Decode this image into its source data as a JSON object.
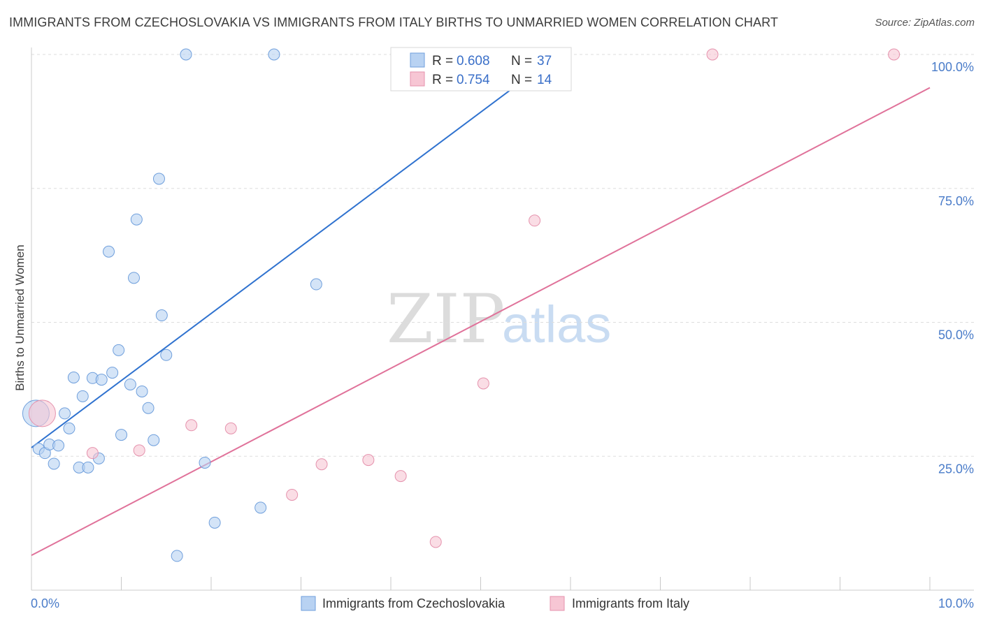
{
  "header": {
    "title": "IMMIGRANTS FROM CZECHOSLOVAKIA VS IMMIGRANTS FROM ITALY BIRTHS TO UNMARRIED WOMEN CORRELATION CHART",
    "source": "Source: ZipAtlas.com"
  },
  "watermark": {
    "zip": "ZIP",
    "atlas": "atlas"
  },
  "colors": {
    "blue_fill": "#b8d2f2",
    "blue_stroke": "#6f9fdc",
    "blue_line": "#2f72cf",
    "pink_fill": "#f7c6d4",
    "pink_stroke": "#e592ad",
    "pink_line": "#e0729a",
    "tick_label": "#4a7cc9",
    "grid": "#dddddd"
  },
  "legend": {
    "items": [
      {
        "r_label": "R = ",
        "r_value": "0.608",
        "n_label": "N = ",
        "n_value": "37",
        "color": "blue"
      },
      {
        "r_label": "R = ",
        "r_value": "0.754",
        "n_label": "N = ",
        "n_value": "14",
        "color": "pink"
      }
    ]
  },
  "chart_data": {
    "type": "scatter",
    "title": "IMMIGRANTS FROM CZECHOSLOVAKIA VS IMMIGRANTS FROM ITALY BIRTHS TO UNMARRIED WOMEN CORRELATION CHART",
    "xlabel": "",
    "ylabel": "Births to Unmarried Women",
    "xlim": [
      0,
      10
    ],
    "ylim": [
      0,
      100
    ],
    "x_unit": "%",
    "y_unit": "%",
    "x_tick_labels": [
      "0.0%",
      "10.0%"
    ],
    "y_tick_values": [
      25,
      50,
      75,
      100
    ],
    "y_tick_labels": [
      "25.0%",
      "50.0%",
      "75.0%",
      "100.0%"
    ],
    "grid": true,
    "legend_position": "top-center",
    "series": [
      {
        "name": "Immigrants from Czechoslovakia",
        "color": "blue",
        "trend": {
          "x": [
            0.0,
            5.9
          ],
          "y": [
            26.6,
            100.5
          ]
        },
        "points": [
          {
            "x": 0.05,
            "y": 33.0,
            "big": true
          },
          {
            "x": 0.08,
            "y": 26.4
          },
          {
            "x": 0.15,
            "y": 25.6
          },
          {
            "x": 0.2,
            "y": 27.2
          },
          {
            "x": 0.25,
            "y": 23.6
          },
          {
            "x": 0.3,
            "y": 27.0
          },
          {
            "x": 0.37,
            "y": 33.0
          },
          {
            "x": 0.42,
            "y": 30.2
          },
          {
            "x": 0.47,
            "y": 39.7
          },
          {
            "x": 0.53,
            "y": 22.9
          },
          {
            "x": 0.57,
            "y": 36.2
          },
          {
            "x": 0.63,
            "y": 22.9
          },
          {
            "x": 0.68,
            "y": 39.6
          },
          {
            "x": 0.75,
            "y": 24.6
          },
          {
            "x": 0.78,
            "y": 39.3
          },
          {
            "x": 0.86,
            "y": 63.2
          },
          {
            "x": 0.9,
            "y": 40.6
          },
          {
            "x": 0.97,
            "y": 44.8
          },
          {
            "x": 1.0,
            "y": 29.0
          },
          {
            "x": 1.1,
            "y": 38.4
          },
          {
            "x": 1.14,
            "y": 58.3
          },
          {
            "x": 1.17,
            "y": 69.2
          },
          {
            "x": 1.23,
            "y": 37.1
          },
          {
            "x": 1.3,
            "y": 34.0
          },
          {
            "x": 1.36,
            "y": 28.0
          },
          {
            "x": 1.42,
            "y": 76.8
          },
          {
            "x": 1.45,
            "y": 51.3
          },
          {
            "x": 1.5,
            "y": 43.9
          },
          {
            "x": 1.62,
            "y": 6.4
          },
          {
            "x": 1.72,
            "y": 100.0
          },
          {
            "x": 1.93,
            "y": 23.8
          },
          {
            "x": 2.04,
            "y": 12.6
          },
          {
            "x": 2.55,
            "y": 15.4
          },
          {
            "x": 2.7,
            "y": 100.0
          },
          {
            "x": 3.17,
            "y": 57.1
          },
          {
            "x": 4.6,
            "y": 100.0
          },
          {
            "x": 5.9,
            "y": 100.0
          }
        ]
      },
      {
        "name": "Immigrants from Italy",
        "color": "pink",
        "trend": {
          "x": [
            0.0,
            10.0
          ],
          "y": [
            6.5,
            93.8
          ]
        },
        "points": [
          {
            "x": 0.12,
            "y": 33.0,
            "big": true
          },
          {
            "x": 0.68,
            "y": 25.6
          },
          {
            "x": 1.2,
            "y": 26.1
          },
          {
            "x": 1.78,
            "y": 30.8
          },
          {
            "x": 2.22,
            "y": 30.2
          },
          {
            "x": 2.9,
            "y": 17.8
          },
          {
            "x": 3.23,
            "y": 23.5
          },
          {
            "x": 3.75,
            "y": 24.3
          },
          {
            "x": 4.11,
            "y": 21.3
          },
          {
            "x": 4.5,
            "y": 9.0
          },
          {
            "x": 5.03,
            "y": 38.6
          },
          {
            "x": 5.6,
            "y": 69.0
          },
          {
            "x": 7.58,
            "y": 100.0
          },
          {
            "x": 9.6,
            "y": 100.0
          }
        ]
      }
    ]
  }
}
